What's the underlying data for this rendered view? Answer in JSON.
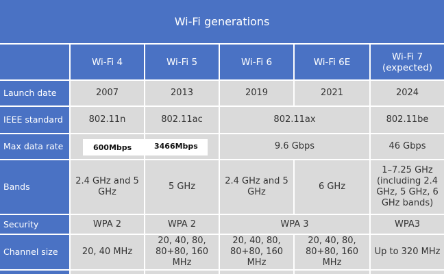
{
  "title": "Wi-Fi generations",
  "columns": [
    "Wi-Fi 4",
    "Wi-Fi 5",
    "Wi-Fi 6",
    "Wi-Fi 6E",
    "Wi-Fi 7\n(expected)"
  ],
  "rows": {
    "launch": {
      "label": "Launch date",
      "values": [
        "2007",
        "2013",
        "2019",
        "2021",
        "2024"
      ]
    },
    "ieee": {
      "label": "IEEE standard",
      "values": [
        "802.11n",
        "802.11ac",
        "802.11ax",
        "802.11be"
      ]
    },
    "rate": {
      "label": "Max data rate",
      "values": [
        "600Mbps",
        "3466Mbps",
        "9.6 Gbps",
        "46 Gbps"
      ]
    },
    "bands": {
      "label": "Bands",
      "values": [
        "2.4 GHz and 5 GHz",
        "5 GHz",
        "2.4 GHz and 5 GHz",
        "6 GHz",
        "1–7.25 GHz (including 2.4 GHz, 5 GHz, 6 GHz bands)"
      ]
    },
    "security": {
      "label": "Security",
      "values": [
        "WPA 2",
        "WPA 2",
        "WPA 3",
        "WPA3"
      ]
    },
    "channel": {
      "label": "Channel size",
      "values": [
        "20, 40 MHz",
        "20, 40, 80, 80+80, 160 MHz",
        "20, 40, 80, 80+80, 160 MHz",
        "20, 40, 80, 80+80, 160 MHz",
        "Up to 320 MHz"
      ]
    }
  },
  "colors": {
    "header_blue": "#4A72C4",
    "cell_gray": "#DADADA",
    "grid_white": "#FFFFFF"
  }
}
